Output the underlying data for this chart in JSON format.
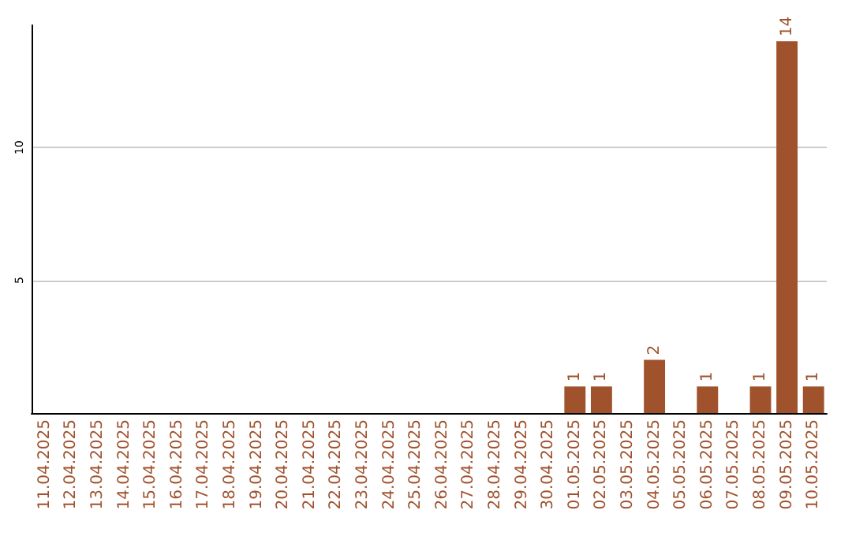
{
  "chart_data": {
    "type": "bar",
    "categories": [
      "11.04.2025",
      "12.04.2025",
      "13.04.2025",
      "14.04.2025",
      "15.04.2025",
      "16.04.2025",
      "17.04.2025",
      "18.04.2025",
      "19.04.2025",
      "20.04.2025",
      "21.04.2025",
      "22.04.2025",
      "23.04.2025",
      "24.04.2025",
      "25.04.2025",
      "26.04.2025",
      "27.04.2025",
      "28.04.2025",
      "29.04.2025",
      "30.04.2025",
      "01.05.2025",
      "02.05.2025",
      "03.05.2025",
      "04.05.2025",
      "05.05.2025",
      "06.05.2025",
      "07.05.2025",
      "08.05.2025",
      "09.05.2025",
      "10.05.2025"
    ],
    "values": [
      0,
      0,
      0,
      0,
      0,
      0,
      0,
      0,
      0,
      0,
      0,
      0,
      0,
      0,
      0,
      0,
      0,
      0,
      0,
      0,
      1,
      1,
      0,
      2,
      0,
      1,
      0,
      1,
      14,
      1
    ],
    "value_labels": [
      null,
      null,
      null,
      null,
      null,
      null,
      null,
      null,
      null,
      null,
      null,
      null,
      null,
      null,
      null,
      null,
      null,
      null,
      null,
      null,
      "1",
      "1",
      null,
      "2",
      null,
      "1",
      null,
      "1",
      "14",
      "1"
    ],
    "color": "#a0522d",
    "ylim": [
      0,
      14.6
    ],
    "yticks": [
      5,
      10
    ],
    "grid": "y"
  }
}
